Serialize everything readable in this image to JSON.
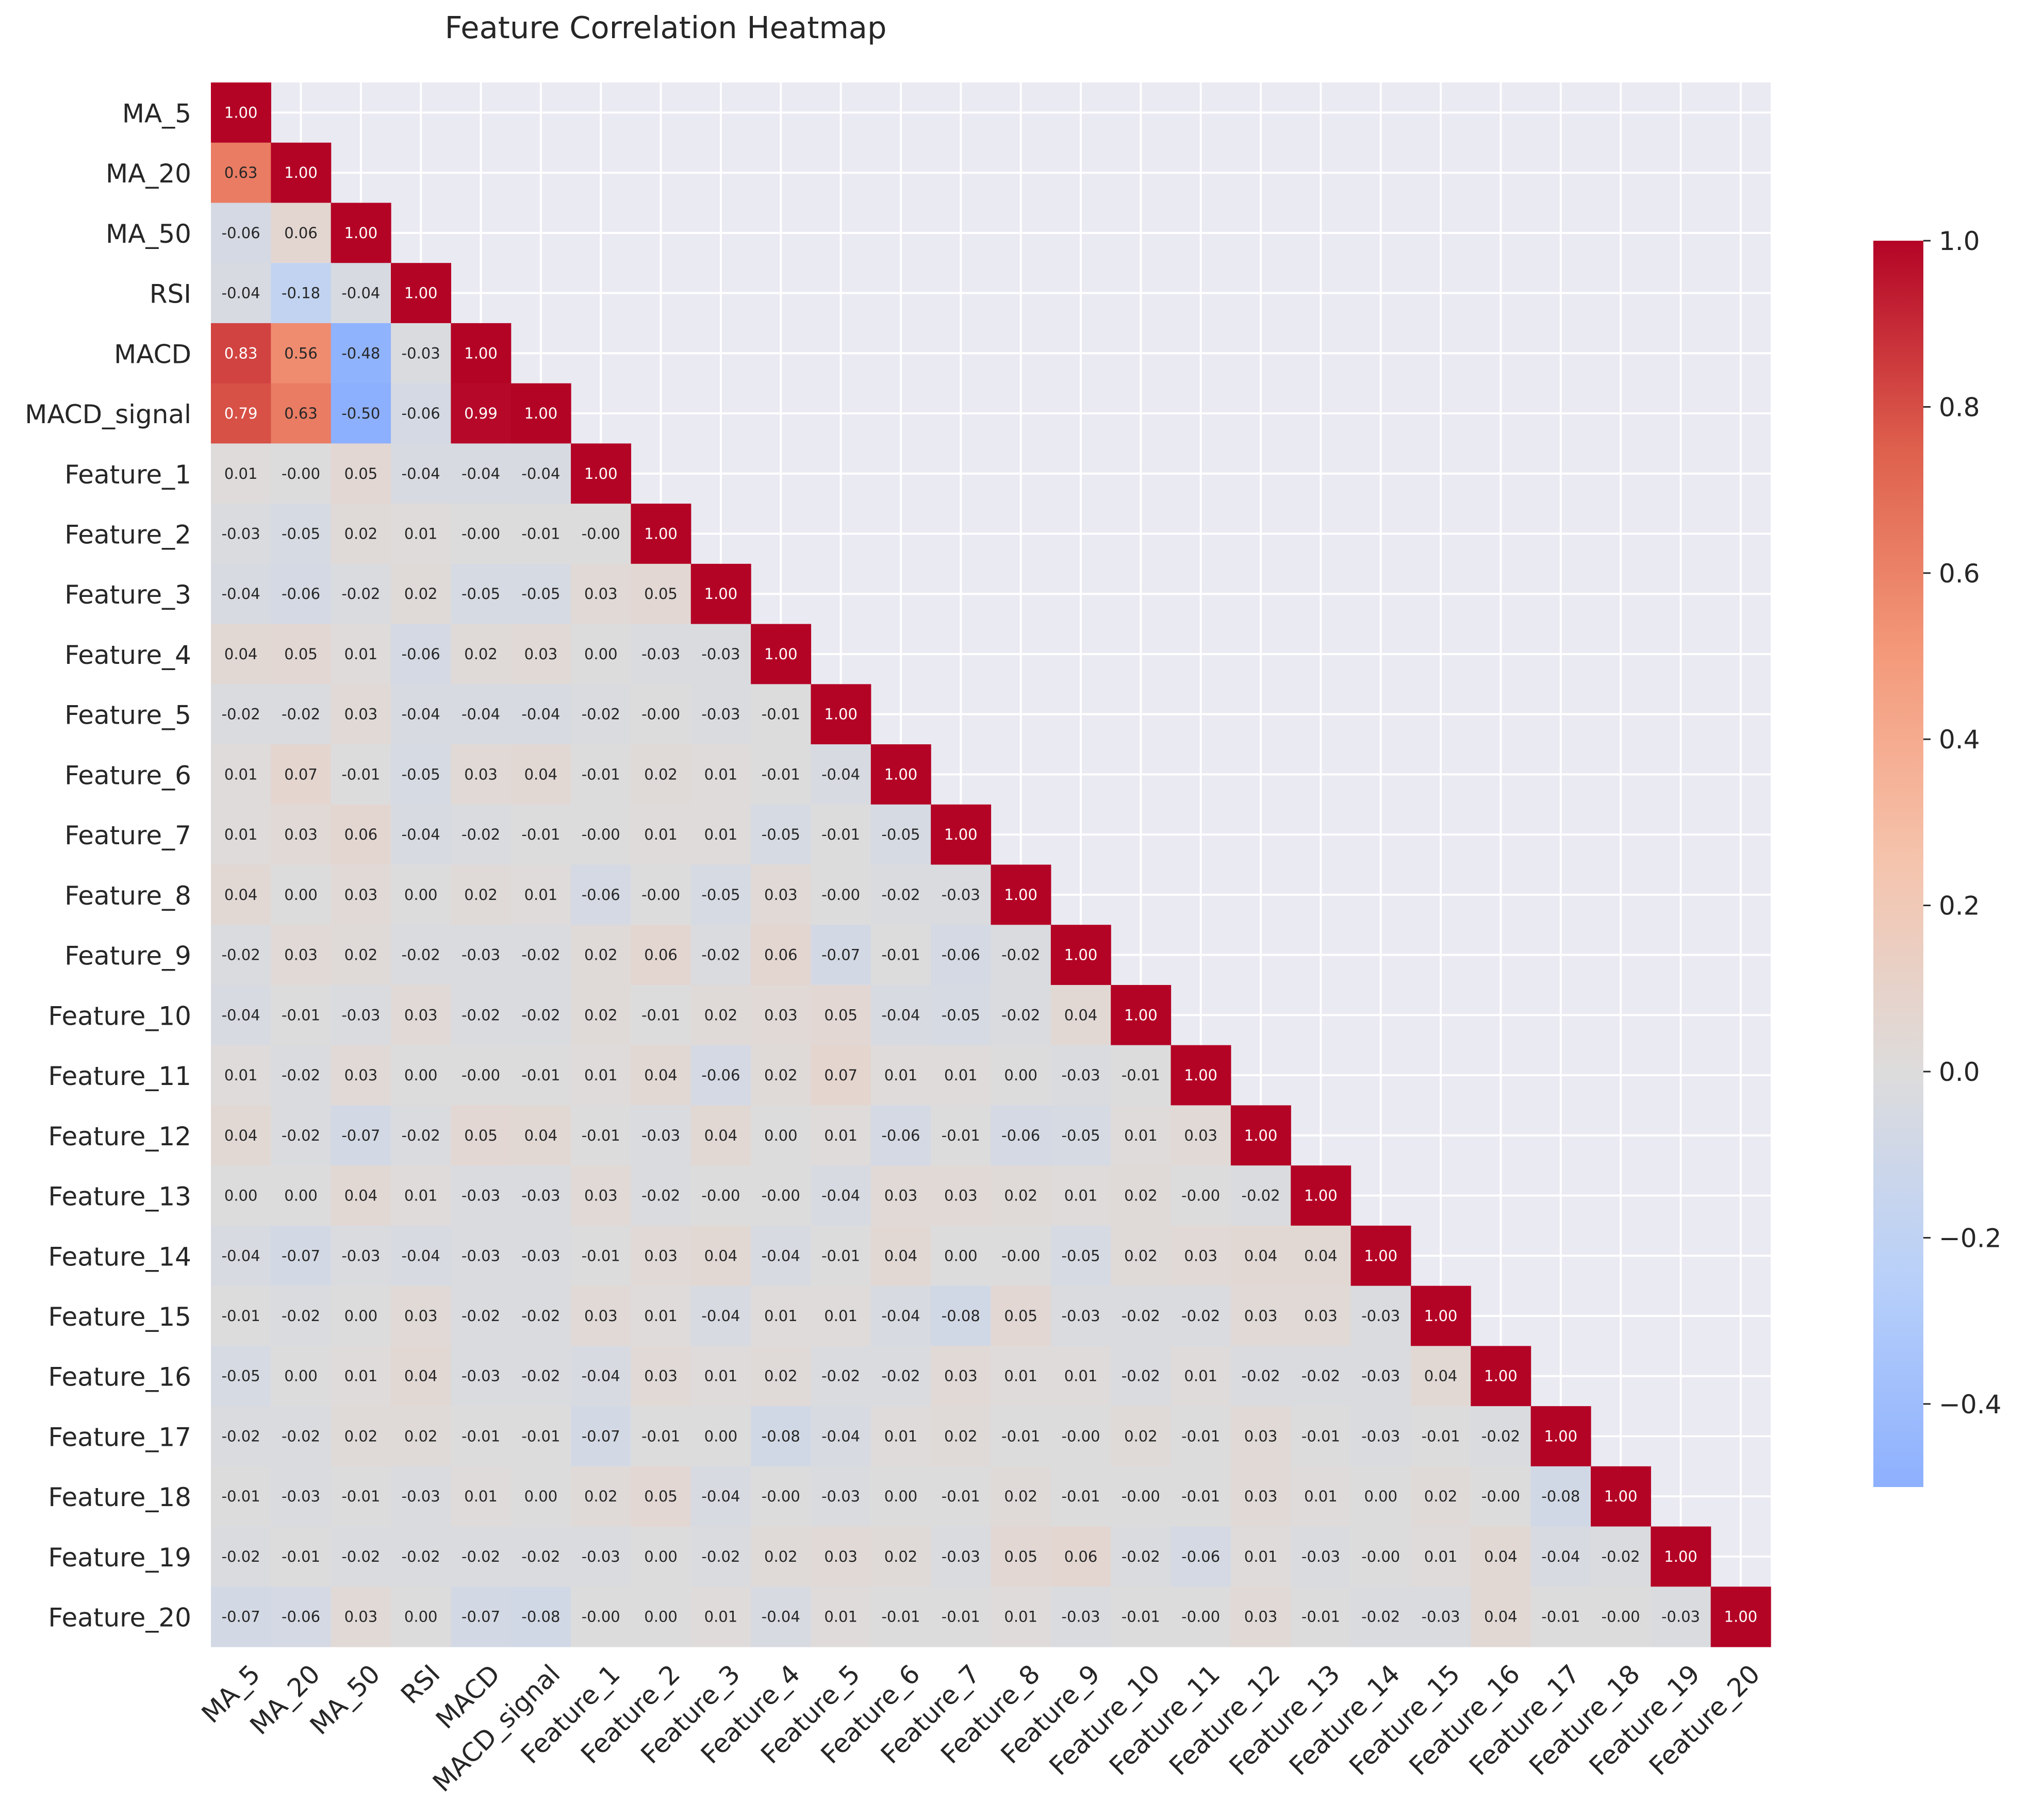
{
  "chart_data": {
    "type": "heatmap",
    "title": "Feature Correlation Heatmap",
    "labels": [
      "MA_5",
      "MA_20",
      "MA_50",
      "RSI",
      "MACD",
      "MACD_signal",
      "Feature_1",
      "Feature_2",
      "Feature_3",
      "Feature_4",
      "Feature_5",
      "Feature_6",
      "Feature_7",
      "Feature_8",
      "Feature_9",
      "Feature_10",
      "Feature_11",
      "Feature_12",
      "Feature_13",
      "Feature_14",
      "Feature_15",
      "Feature_16",
      "Feature_17",
      "Feature_18",
      "Feature_19",
      "Feature_20"
    ],
    "mask": "lower-triangle-including-diagonal",
    "value_format": "2 decimals",
    "colormap": "coolwarm",
    "color_range": [
      -0.5,
      1.0
    ],
    "colorbar_ticks": [
      "−0.4",
      "−0.2",
      "0.0",
      "0.2",
      "0.4",
      "0.6",
      "0.8",
      "1.0"
    ],
    "colorbar_tick_values": [
      -0.4,
      -0.2,
      0.0,
      0.2,
      0.4,
      0.6,
      0.8,
      1.0
    ],
    "grid": true,
    "background": "#eaeaf2",
    "matrix": [
      [
        1.0
      ],
      [
        0.63,
        1.0
      ],
      [
        -0.06,
        0.06,
        1.0
      ],
      [
        -0.04,
        -0.18,
        -0.04,
        1.0
      ],
      [
        0.83,
        0.56,
        -0.48,
        -0.03,
        1.0
      ],
      [
        0.79,
        0.63,
        -0.5,
        -0.06,
        0.99,
        1.0
      ],
      [
        0.01,
        -0.0,
        0.05,
        -0.04,
        -0.04,
        -0.04,
        1.0
      ],
      [
        -0.03,
        -0.05,
        0.02,
        0.01,
        -0.0,
        -0.01,
        -0.0,
        1.0
      ],
      [
        -0.04,
        -0.06,
        -0.02,
        0.02,
        -0.05,
        -0.05,
        0.03,
        0.05,
        1.0
      ],
      [
        0.04,
        0.05,
        0.01,
        -0.06,
        0.02,
        0.03,
        0.0,
        -0.03,
        -0.03,
        1.0
      ],
      [
        -0.02,
        -0.02,
        0.03,
        -0.04,
        -0.04,
        -0.04,
        -0.02,
        -0.0,
        -0.03,
        -0.01,
        1.0
      ],
      [
        0.01,
        0.07,
        -0.01,
        -0.05,
        0.03,
        0.04,
        -0.01,
        0.02,
        0.01,
        -0.01,
        -0.04,
        1.0
      ],
      [
        0.01,
        0.03,
        0.06,
        -0.04,
        -0.02,
        -0.01,
        -0.0,
        0.01,
        0.01,
        -0.05,
        -0.01,
        -0.05,
        1.0
      ],
      [
        0.04,
        0.0,
        0.03,
        0.0,
        0.02,
        0.01,
        -0.06,
        -0.0,
        -0.05,
        0.03,
        -0.0,
        -0.02,
        -0.03,
        1.0
      ],
      [
        -0.02,
        0.03,
        0.02,
        -0.02,
        -0.03,
        -0.02,
        0.02,
        0.06,
        -0.02,
        0.06,
        -0.07,
        -0.01,
        -0.06,
        -0.02,
        1.0
      ],
      [
        -0.04,
        -0.01,
        -0.03,
        0.03,
        -0.02,
        -0.02,
        0.02,
        -0.01,
        0.02,
        0.03,
        0.05,
        -0.04,
        -0.05,
        -0.02,
        0.04,
        1.0
      ],
      [
        0.01,
        -0.02,
        0.03,
        0.0,
        -0.0,
        -0.01,
        0.01,
        0.04,
        -0.06,
        0.02,
        0.07,
        0.01,
        0.01,
        0.0,
        -0.03,
        -0.01,
        1.0
      ],
      [
        0.04,
        -0.02,
        -0.07,
        -0.02,
        0.05,
        0.04,
        -0.01,
        -0.03,
        0.04,
        0.0,
        0.01,
        -0.06,
        -0.01,
        -0.06,
        -0.05,
        0.01,
        0.03,
        1.0
      ],
      [
        0.0,
        0.0,
        0.04,
        0.01,
        -0.03,
        -0.03,
        0.03,
        -0.02,
        -0.0,
        -0.0,
        -0.04,
        0.03,
        0.03,
        0.02,
        0.01,
        0.02,
        -0.0,
        -0.02,
        1.0
      ],
      [
        -0.04,
        -0.07,
        -0.03,
        -0.04,
        -0.03,
        -0.03,
        -0.01,
        0.03,
        0.04,
        -0.04,
        -0.01,
        0.04,
        0.0,
        -0.0,
        -0.05,
        0.02,
        0.03,
        0.04,
        0.04,
        1.0
      ],
      [
        -0.01,
        -0.02,
        0.0,
        0.03,
        -0.02,
        -0.02,
        0.03,
        0.01,
        -0.04,
        0.01,
        0.01,
        -0.04,
        -0.08,
        0.05,
        -0.03,
        -0.02,
        -0.02,
        0.03,
        0.03,
        -0.03,
        1.0
      ],
      [
        -0.05,
        0.0,
        0.01,
        0.04,
        -0.03,
        -0.02,
        -0.04,
        0.03,
        0.01,
        0.02,
        -0.02,
        -0.02,
        0.03,
        0.01,
        0.01,
        -0.02,
        0.01,
        -0.02,
        -0.02,
        -0.03,
        0.04,
        1.0
      ],
      [
        -0.02,
        -0.02,
        0.02,
        0.02,
        -0.01,
        -0.01,
        -0.07,
        -0.01,
        0.0,
        -0.08,
        -0.04,
        0.01,
        0.02,
        -0.01,
        -0.0,
        0.02,
        -0.01,
        0.03,
        -0.01,
        -0.03,
        -0.01,
        -0.02,
        1.0
      ],
      [
        -0.01,
        -0.03,
        -0.01,
        -0.03,
        0.01,
        0.0,
        0.02,
        0.05,
        -0.04,
        -0.0,
        -0.03,
        0.0,
        -0.01,
        0.02,
        -0.01,
        -0.0,
        -0.01,
        0.03,
        0.01,
        0.0,
        0.02,
        -0.0,
        -0.08,
        1.0
      ],
      [
        -0.02,
        -0.01,
        -0.02,
        -0.02,
        -0.02,
        -0.02,
        -0.03,
        0.0,
        -0.02,
        0.02,
        0.03,
        0.02,
        -0.03,
        0.05,
        0.06,
        -0.02,
        -0.06,
        0.01,
        -0.03,
        -0.0,
        0.01,
        0.04,
        -0.04,
        -0.02,
        1.0
      ],
      [
        -0.07,
        -0.06,
        0.03,
        0.0,
        -0.07,
        -0.08,
        -0.0,
        0.0,
        0.01,
        -0.04,
        0.01,
        -0.01,
        -0.01,
        0.01,
        -0.03,
        -0.01,
        -0.0,
        0.03,
        -0.01,
        -0.02,
        -0.03,
        0.04,
        -0.01,
        -0.0,
        -0.03,
        1.0
      ]
    ]
  }
}
